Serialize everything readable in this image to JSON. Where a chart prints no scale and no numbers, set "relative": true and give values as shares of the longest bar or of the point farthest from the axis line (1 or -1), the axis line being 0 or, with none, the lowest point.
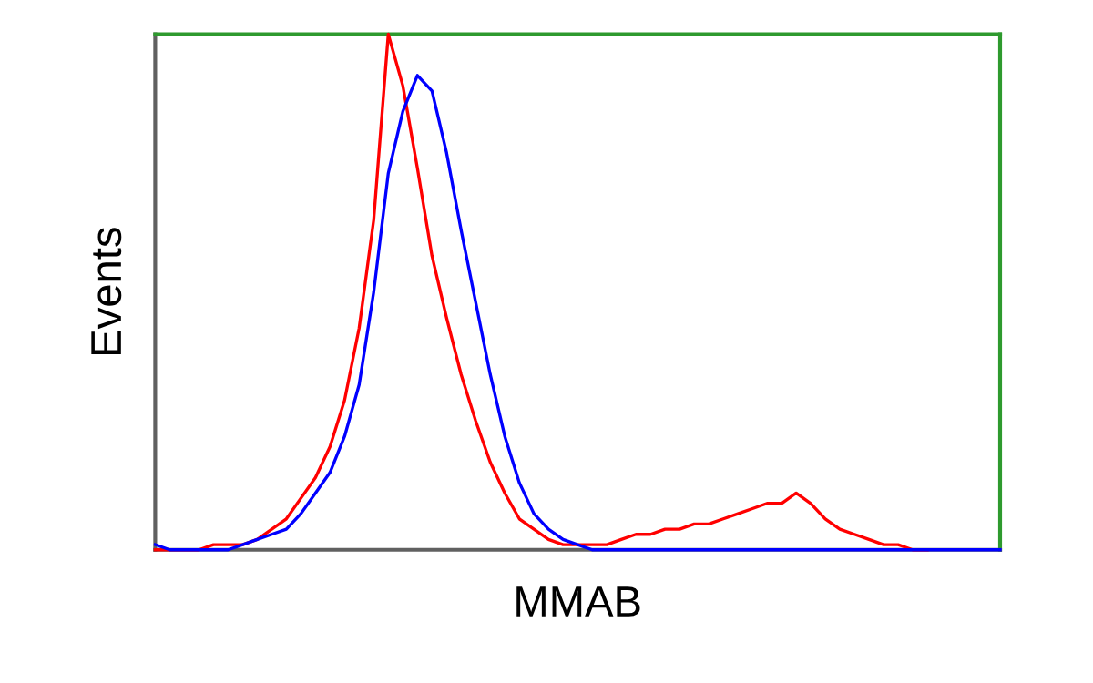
{
  "chart_data": {
    "type": "line",
    "xlabel": "MMAB",
    "ylabel": "Events",
    "relative": true,
    "marker": "none",
    "line_style": "solid",
    "categories": [
      null,
      null,
      null,
      null,
      null,
      null,
      null,
      null,
      null,
      null,
      null,
      null,
      null,
      null,
      null,
      null,
      null,
      null,
      null,
      null,
      null,
      null,
      null,
      null,
      null,
      null,
      null,
      null,
      null,
      null,
      null,
      null,
      null,
      null,
      null,
      null,
      null,
      null,
      null,
      null,
      null,
      null,
      null,
      null,
      null,
      null,
      null,
      null,
      null,
      null,
      null,
      null,
      null,
      null,
      null,
      null,
      null,
      null,
      null
    ],
    "series": [
      {
        "color": "#ff0000",
        "values": [
          0,
          0,
          0,
          0.0,
          0.01,
          0.01,
          0.01,
          0.02,
          0.04,
          0.06,
          0.1,
          0.14,
          0.2,
          0.29,
          0.43,
          0.64,
          1.0,
          0.9,
          0.74,
          0.57,
          0.45,
          0.34,
          0.25,
          0.17,
          0.11,
          0.06,
          0.04,
          0.02,
          0.01,
          0.01,
          0.01,
          0.01,
          0.02,
          0.03,
          0.03,
          0.04,
          0.04,
          0.05,
          0.05,
          0.06,
          0.07,
          0.08,
          0.09,
          0.09,
          0.11,
          0.09,
          0.06,
          0.04,
          0.03,
          0.02,
          0.01,
          0.01,
          0.0,
          0,
          null,
          null,
          null,
          null,
          null
        ]
      },
      {
        "color": "#0000ff",
        "values": [
          0.01,
          0,
          0,
          0,
          0,
          0.0,
          0.01,
          0.02,
          0.03,
          0.04,
          0.07,
          0.11,
          0.15,
          0.22,
          0.32,
          0.5,
          0.73,
          0.85,
          0.92,
          0.89,
          0.77,
          0.62,
          0.48,
          0.34,
          0.22,
          0.13,
          0.07,
          0.04,
          0.02,
          0.01,
          0.0,
          0,
          0,
          0,
          0,
          0,
          0,
          0,
          0,
          0,
          0,
          0,
          0,
          0,
          0,
          0,
          0,
          0,
          0,
          0,
          0,
          0,
          0,
          0,
          0,
          0,
          0,
          0,
          0
        ]
      }
    ]
  }
}
